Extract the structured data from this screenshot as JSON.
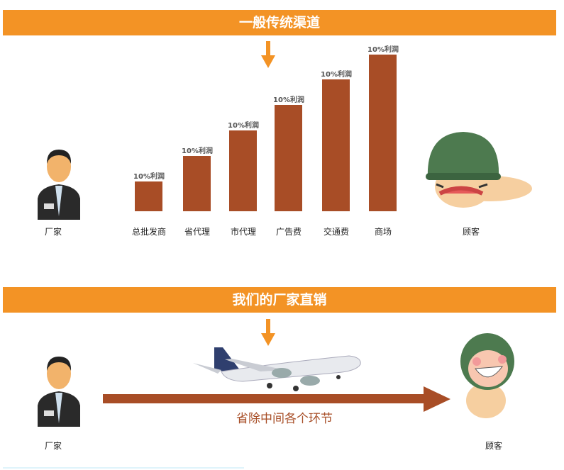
{
  "colors": {
    "banner": "#f39325",
    "bar": "#a84d26",
    "arrow": "#a84d26",
    "note_text": "#a84f28"
  },
  "traditional": {
    "title": "一般传统渠道",
    "manufacturer_label": "厂家",
    "customer_label": "顾客",
    "customer_icon": "crying-soldier-cartoon",
    "manufacturer_icon": "businessman-avatar",
    "steps": [
      {
        "category": "总批发商",
        "profit": "10%利润",
        "level": 1
      },
      {
        "category": "省代理",
        "profit": "10%利润",
        "level": 2
      },
      {
        "category": "市代理",
        "profit": "10%利润",
        "level": 3
      },
      {
        "category": "广告费",
        "profit": "10%利润",
        "level": 4
      },
      {
        "category": "交通费",
        "profit": "10%利润",
        "level": 5
      },
      {
        "category": "商场",
        "profit": "10%利润",
        "level": 6
      }
    ]
  },
  "direct": {
    "title": "我们的厂家直销",
    "arrow_text": "省除中间各个环节",
    "manufacturer_label": "厂家",
    "customer_label": "顾客",
    "image": "airplane",
    "customer_icon": "smiling-soldier-cartoon"
  }
}
